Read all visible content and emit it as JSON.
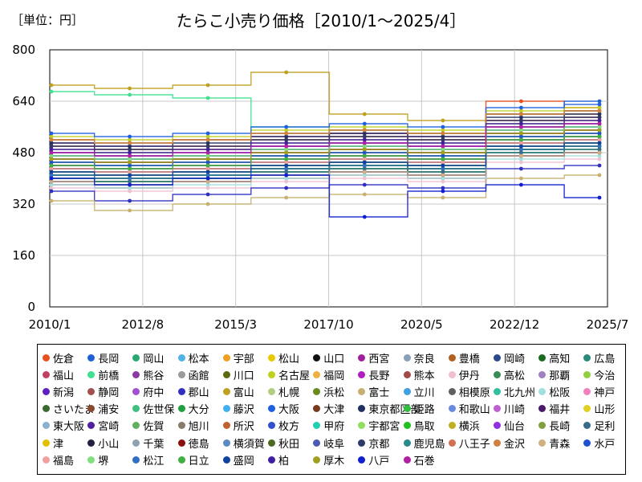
{
  "chart_data": {
    "type": "line",
    "unit_label": "［単位：円］",
    "title": "たらこ小売り価格［2010/1～2025/4］",
    "xlabel": "",
    "ylabel": "",
    "ylim": [
      0,
      800
    ],
    "y_ticks": [
      0,
      160,
      320,
      480,
      640,
      800
    ],
    "x_range": [
      "2010/1",
      "2025/7"
    ],
    "x_ticks": [
      "2010/1",
      "2012/8",
      "2015/3",
      "2017/10",
      "2020/5",
      "2022/12",
      "2025/7"
    ],
    "grid": true,
    "legend_position": "bottom",
    "series": [
      {
        "name": "佐倉",
        "color": "#e8501e",
        "values": [
          520,
          470,
          490,
          500,
          540,
          520,
          640,
          620
        ]
      },
      {
        "name": "長岡",
        "color": "#1f5fd6",
        "values": [
          480,
          460,
          470,
          500,
          510,
          500,
          600,
          640
        ]
      },
      {
        "name": "岡山",
        "color": "#2aa870",
        "values": [
          420,
          400,
          410,
          430,
          440,
          430,
          520,
          540
        ]
      },
      {
        "name": "松本",
        "color": "#4fb3e8",
        "values": [
          450,
          440,
          450,
          460,
          470,
          460,
          540,
          560
        ]
      },
      {
        "name": "宇部",
        "color": "#f0a020",
        "values": [
          460,
          450,
          470,
          480,
          490,
          480,
          560,
          580
        ]
      },
      {
        "name": "松山",
        "color": "#e8c800",
        "values": [
          400,
          390,
          410,
          420,
          430,
          420,
          500,
          520
        ]
      },
      {
        "name": "山口",
        "color": "#111111",
        "values": [
          440,
          450,
          460,
          470,
          480,
          470,
          520,
          530
        ]
      },
      {
        "name": "西宮",
        "color": "#a020a0",
        "values": [
          510,
          500,
          520,
          530,
          540,
          530,
          600,
          610
        ]
      },
      {
        "name": "奈良",
        "color": "#8aa0b8",
        "values": [
          390,
          380,
          400,
          410,
          420,
          410,
          480,
          500
        ]
      },
      {
        "name": "豊橋",
        "color": "#b06020",
        "values": [
          500,
          490,
          500,
          520,
          530,
          520,
          580,
          600
        ]
      },
      {
        "name": "岡崎",
        "color": "#2a4a8a",
        "values": [
          430,
          420,
          430,
          450,
          460,
          450,
          520,
          530
        ]
      },
      {
        "name": "高知",
        "color": "#1a6a20",
        "values": [
          470,
          460,
          470,
          490,
          500,
          490,
          560,
          570
        ]
      },
      {
        "name": "広島",
        "color": "#2a8a7a",
        "values": [
          410,
          400,
          420,
          430,
          440,
          430,
          500,
          510
        ]
      },
      {
        "name": "福山",
        "color": "#c04060",
        "values": [
          380,
          370,
          390,
          400,
          410,
          400,
          470,
          480
        ]
      },
      {
        "name": "前橋",
        "color": "#40e090",
        "values": [
          670,
          660,
          650,
          560,
          550,
          540,
          600,
          610
        ]
      },
      {
        "name": "熊谷",
        "color": "#8a3aa0",
        "values": [
          440,
          430,
          440,
          460,
          470,
          460,
          530,
          540
        ]
      },
      {
        "name": "函館",
        "color": "#9a9a9a",
        "values": [
          420,
          410,
          420,
          440,
          450,
          440,
          510,
          520
        ]
      },
      {
        "name": "川口",
        "color": "#5a6a10",
        "values": [
          400,
          390,
          400,
          420,
          430,
          420,
          490,
          500
        ]
      },
      {
        "name": "名古屋",
        "color": "#c0d020",
        "values": [
          530,
          520,
          530,
          550,
          560,
          550,
          610,
          620
        ]
      },
      {
        "name": "福岡",
        "color": "#f0b040",
        "values": [
          490,
          480,
          490,
          510,
          520,
          510,
          570,
          580
        ]
      },
      {
        "name": "長野",
        "color": "#b020c0",
        "values": [
          460,
          450,
          460,
          480,
          490,
          480,
          540,
          550
        ]
      },
      {
        "name": "熊本",
        "color": "#a04a4a",
        "values": [
          430,
          420,
          430,
          450,
          460,
          450,
          510,
          520
        ]
      },
      {
        "name": "伊丹",
        "color": "#f0c0d0",
        "values": [
          370,
          360,
          370,
          390,
          400,
          390,
          450,
          460
        ]
      },
      {
        "name": "高松",
        "color": "#3a8a5a",
        "values": [
          450,
          440,
          450,
          470,
          480,
          470,
          530,
          540
        ]
      },
      {
        "name": "那覇",
        "color": "#a080c0",
        "values": [
          500,
          490,
          500,
          520,
          530,
          520,
          580,
          590
        ]
      },
      {
        "name": "今治",
        "color": "#90d040",
        "values": [
          410,
          400,
          410,
          430,
          440,
          430,
          490,
          500
        ]
      },
      {
        "name": "新潟",
        "color": "#6020c0",
        "values": [
          520,
          510,
          520,
          540,
          550,
          540,
          600,
          610
        ]
      },
      {
        "name": "静岡",
        "color": "#a05050",
        "values": [
          480,
          470,
          480,
          500,
          510,
          500,
          560,
          570
        ]
      },
      {
        "name": "府中",
        "color": "#a050d0",
        "values": [
          390,
          380,
          390,
          410,
          420,
          410,
          470,
          480
        ]
      },
      {
        "name": "郡山",
        "color": "#3030c0",
        "values": [
          360,
          330,
          350,
          370,
          380,
          370,
          430,
          440
        ]
      },
      {
        "name": "富山",
        "color": "#c0a020",
        "values": [
          690,
          680,
          690,
          730,
          600,
          580,
          560,
          570
        ]
      },
      {
        "name": "札幌",
        "color": "#b0d080",
        "values": [
          440,
          430,
          440,
          460,
          470,
          460,
          520,
          530
        ]
      },
      {
        "name": "浜松",
        "color": "#6a8a20",
        "values": [
          420,
          410,
          420,
          440,
          450,
          440,
          500,
          510
        ]
      },
      {
        "name": "富士",
        "color": "#c8b070",
        "values": [
          330,
          300,
          320,
          340,
          350,
          340,
          400,
          410
        ]
      },
      {
        "name": "立川",
        "color": "#40a0e0",
        "values": [
          450,
          440,
          450,
          470,
          480,
          470,
          530,
          540
        ]
      },
      {
        "name": "相模原",
        "color": "#606060",
        "values": [
          460,
          450,
          460,
          480,
          490,
          480,
          540,
          550
        ]
      },
      {
        "name": "北九州",
        "color": "#30c0a0",
        "values": [
          400,
          390,
          400,
          420,
          430,
          420,
          480,
          490
        ]
      },
      {
        "name": "松阪",
        "color": "#a0e0e0",
        "values": [
          380,
          370,
          380,
          400,
          410,
          400,
          460,
          470
        ]
      },
      {
        "name": "神戸",
        "color": "#f080c0",
        "values": [
          500,
          490,
          500,
          520,
          530,
          520,
          580,
          590
        ]
      },
      {
        "name": "さいたま",
        "color": "#3a6a30",
        "values": [
          470,
          460,
          470,
          490,
          500,
          490,
          550,
          560
        ]
      },
      {
        "name": "浦安",
        "color": "#8a4a30",
        "values": [
          430,
          420,
          430,
          450,
          460,
          450,
          510,
          520
        ]
      },
      {
        "name": "佐世保",
        "color": "#40c080",
        "values": [
          410,
          400,
          410,
          430,
          440,
          430,
          490,
          500
        ]
      },
      {
        "name": "大分",
        "color": "#20a040",
        "values": [
          390,
          380,
          390,
          410,
          420,
          410,
          470,
          480
        ]
      },
      {
        "name": "藤沢",
        "color": "#40b0f0",
        "values": [
          480,
          470,
          480,
          500,
          510,
          500,
          560,
          570
        ]
      },
      {
        "name": "大阪",
        "color": "#2060e0",
        "values": [
          540,
          530,
          540,
          560,
          570,
          560,
          620,
          630
        ]
      },
      {
        "name": "大津",
        "color": "#7a3a20",
        "values": [
          420,
          410,
          420,
          440,
          450,
          440,
          500,
          510
        ]
      },
      {
        "name": "東京都区部",
        "color": "#203060",
        "values": [
          510,
          500,
          510,
          530,
          540,
          530,
          590,
          600
        ]
      },
      {
        "name": "姫路",
        "color": "#30c040",
        "values": [
          400,
          390,
          400,
          420,
          430,
          420,
          480,
          490
        ]
      },
      {
        "name": "和歌山",
        "color": "#6a8ae0",
        "values": [
          430,
          420,
          430,
          450,
          460,
          450,
          510,
          520
        ]
      },
      {
        "name": "川崎",
        "color": "#c060d0",
        "values": [
          470,
          460,
          470,
          490,
          500,
          490,
          550,
          560
        ]
      },
      {
        "name": "福井",
        "color": "#4a1a6a",
        "values": [
          450,
          440,
          450,
          470,
          480,
          470,
          530,
          540
        ]
      },
      {
        "name": "山形",
        "color": "#e0d020",
        "values": [
          440,
          430,
          440,
          460,
          470,
          460,
          520,
          530
        ]
      },
      {
        "name": "東大阪",
        "color": "#8ab0d0",
        "values": [
          420,
          410,
          420,
          440,
          450,
          440,
          500,
          510
        ]
      },
      {
        "name": "宮崎",
        "color": "#5020a0",
        "values": [
          390,
          380,
          390,
          410,
          420,
          410,
          470,
          480
        ]
      },
      {
        "name": "佐賀",
        "color": "#60b060",
        "values": [
          410,
          400,
          410,
          430,
          440,
          430,
          490,
          500
        ]
      },
      {
        "name": "旭川",
        "color": "#8a7a6a",
        "values": [
          460,
          450,
          460,
          480,
          490,
          480,
          540,
          550
        ]
      },
      {
        "name": "所沢",
        "color": "#c06030",
        "values": [
          500,
          490,
          500,
          520,
          530,
          520,
          580,
          590
        ]
      },
      {
        "name": "枚方",
        "color": "#3050d0",
        "values": [
          470,
          460,
          470,
          490,
          500,
          490,
          550,
          560
        ]
      },
      {
        "name": "甲府",
        "color": "#20d0b0",
        "values": [
          430,
          420,
          430,
          450,
          460,
          450,
          510,
          520
        ]
      },
      {
        "name": "宇都宮",
        "color": "#90e060",
        "values": [
          450,
          440,
          450,
          470,
          480,
          470,
          530,
          540
        ]
      },
      {
        "name": "鳥取",
        "color": "#20c020",
        "values": [
          410,
          400,
          410,
          430,
          440,
          430,
          490,
          500
        ]
      },
      {
        "name": "横浜",
        "color": "#c0b020",
        "values": [
          520,
          510,
          520,
          540,
          550,
          540,
          600,
          610
        ]
      },
      {
        "name": "仙台",
        "color": "#9030e0",
        "values": [
          480,
          470,
          480,
          500,
          510,
          500,
          560,
          570
        ]
      },
      {
        "name": "長崎",
        "color": "#80a040",
        "values": [
          440,
          430,
          440,
          460,
          470,
          460,
          520,
          530
        ]
      },
      {
        "name": "足利",
        "color": "#3a6a8a",
        "values": [
          400,
          390,
          400,
          420,
          430,
          420,
          480,
          490
        ]
      },
      {
        "name": "津",
        "color": "#e0c000",
        "values": [
          420,
          410,
          420,
          440,
          450,
          440,
          500,
          510
        ]
      },
      {
        "name": "小山",
        "color": "#202040",
        "values": [
          460,
          450,
          460,
          480,
          490,
          480,
          540,
          550
        ]
      },
      {
        "name": "千葉",
        "color": "#90a0b0",
        "values": [
          490,
          480,
          490,
          510,
          520,
          510,
          570,
          580
        ]
      },
      {
        "name": "徳島",
        "color": "#8a1010",
        "values": [
          430,
          420,
          430,
          450,
          460,
          450,
          510,
          520
        ]
      },
      {
        "name": "横須賀",
        "color": "#5a8ac0",
        "values": [
          470,
          460,
          470,
          490,
          500,
          490,
          550,
          560
        ]
      },
      {
        "name": "秋田",
        "color": "#4a6a20",
        "values": [
          410,
          400,
          410,
          430,
          440,
          430,
          490,
          500
        ]
      },
      {
        "name": "岐阜",
        "color": "#4a5ab0",
        "values": [
          440,
          430,
          440,
          460,
          470,
          460,
          520,
          530
        ]
      },
      {
        "name": "京都",
        "color": "#2a3a6a",
        "values": [
          500,
          490,
          500,
          520,
          530,
          520,
          580,
          590
        ]
      },
      {
        "name": "鹿児島",
        "color": "#2a8a8a",
        "values": [
          420,
          410,
          420,
          440,
          450,
          440,
          500,
          510
        ]
      },
      {
        "name": "八王子",
        "color": "#d07050",
        "values": [
          460,
          450,
          460,
          480,
          490,
          480,
          540,
          550
        ]
      },
      {
        "name": "金沢",
        "color": "#d08040",
        "values": [
          520,
          510,
          520,
          540,
          550,
          540,
          600,
          610
        ]
      },
      {
        "name": "青森",
        "color": "#d0b080",
        "values": [
          390,
          380,
          390,
          410,
          420,
          410,
          470,
          480
        ]
      },
      {
        "name": "水戸",
        "color": "#2050d0",
        "values": [
          450,
          440,
          450,
          470,
          480,
          470,
          530,
          540
        ]
      },
      {
        "name": "福島",
        "color": "#f0a0a0",
        "values": [
          430,
          420,
          430,
          450,
          460,
          450,
          510,
          520
        ]
      },
      {
        "name": "堺",
        "color": "#80e080",
        "values": [
          470,
          460,
          470,
          490,
          500,
          490,
          550,
          560
        ]
      },
      {
        "name": "松江",
        "color": "#3070c0",
        "values": [
          410,
          400,
          410,
          430,
          440,
          430,
          490,
          500
        ]
      },
      {
        "name": "日立",
        "color": "#40b040",
        "values": [
          440,
          430,
          440,
          460,
          470,
          460,
          520,
          530
        ]
      },
      {
        "name": "盛岡",
        "color": "#1040a0",
        "values": [
          420,
          410,
          420,
          440,
          450,
          440,
          500,
          510
        ]
      },
      {
        "name": "柏",
        "color": "#4020a0",
        "values": [
          490,
          480,
          490,
          510,
          520,
          510,
          570,
          580
        ]
      },
      {
        "name": "厚木",
        "color": "#a0a020",
        "values": [
          460,
          450,
          460,
          480,
          490,
          480,
          540,
          550
        ]
      },
      {
        "name": "八戸",
        "color": "#1020d0",
        "values": [
          400,
          380,
          400,
          410,
          280,
          360,
          380,
          340
        ]
      },
      {
        "name": "石巻",
        "color": "#b020a0",
        "values": [
          480,
          470,
          480,
          500,
          510,
          500,
          560,
          570
        ]
      }
    ]
  }
}
